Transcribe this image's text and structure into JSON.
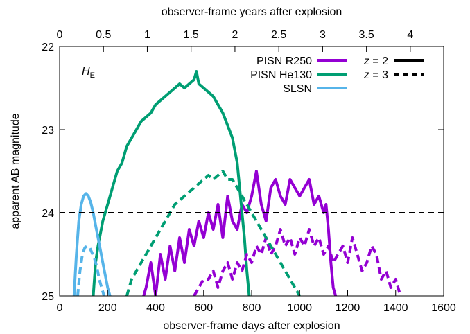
{
  "chart_data": {
    "type": "line",
    "x_axis": {
      "label": "observer-frame days after explosion",
      "range": [
        0,
        1600
      ],
      "ticks": [
        0,
        200,
        400,
        600,
        800,
        1000,
        1200,
        1400,
        1600
      ]
    },
    "x2_axis": {
      "label": "observer-frame years after explosion",
      "unit_days": 365.25,
      "ticks": [
        "0",
        "0.5",
        "1",
        "1.5",
        "2",
        "2.5",
        "3",
        "3.5",
        "4"
      ],
      "tick_values": [
        0,
        0.5,
        1,
        1.5,
        2,
        2.5,
        3,
        3.5,
        4
      ]
    },
    "y_axis": {
      "label": "apparent AB magnitude",
      "range": [
        22,
        25
      ],
      "inverted": true,
      "ticks": [
        22,
        23,
        24,
        25
      ]
    },
    "annotation": {
      "text": "H",
      "subscript": "E"
    },
    "grid": false,
    "reference_line": {
      "y": 24,
      "style": "dashed",
      "color": "#000000"
    },
    "legend_models": [
      {
        "label": "PISN R250",
        "color": "#9400d3"
      },
      {
        "label": "PISN He130",
        "color": "#009e73"
      },
      {
        "label": "SLSN",
        "color": "#56b4e9"
      }
    ],
    "legend_redshift": [
      {
        "label_var": "z",
        "label_rest": " = 2",
        "style": "solid"
      },
      {
        "label_var": "z",
        "label_rest": " = 3",
        "style": "dashed"
      }
    ],
    "series": [
      {
        "name": "PISN R250",
        "z": 2,
        "style": "solid",
        "color": "#9400d3",
        "x": [
          350,
          360,
          380,
          400,
          420,
          440,
          460,
          480,
          500,
          520,
          540,
          560,
          580,
          600,
          620,
          640,
          660,
          680,
          700,
          720,
          740,
          760,
          780,
          800,
          820,
          840,
          860,
          880,
          900,
          920,
          940,
          960,
          980,
          1000,
          1020,
          1040,
          1060,
          1080,
          1100,
          1110,
          1120,
          1130,
          1140,
          1150
        ],
        "y": [
          25.0,
          24.9,
          24.6,
          25.0,
          24.5,
          24.8,
          24.4,
          24.7,
          24.3,
          24.6,
          24.2,
          24.4,
          24.1,
          24.3,
          24.0,
          24.2,
          23.9,
          24.3,
          23.8,
          24.1,
          24.2,
          23.9,
          24.0,
          23.8,
          23.5,
          23.9,
          24.1,
          23.7,
          23.6,
          23.8,
          23.9,
          23.6,
          23.7,
          23.8,
          23.7,
          23.6,
          23.9,
          23.8,
          24.0,
          23.9,
          24.2,
          24.6,
          24.9,
          25.0
        ]
      },
      {
        "name": "PISN He130",
        "z": 2,
        "style": "solid",
        "color": "#009e73",
        "x": [
          140,
          150,
          160,
          180,
          200,
          220,
          240,
          260,
          280,
          300,
          320,
          340,
          360,
          380,
          400,
          420,
          440,
          460,
          480,
          500,
          520,
          540,
          560,
          570,
          580,
          600,
          620,
          640,
          660,
          680,
          700,
          720,
          740,
          750,
          760,
          770,
          780,
          790
        ],
        "y": [
          25.0,
          24.6,
          24.4,
          24.1,
          23.9,
          23.7,
          23.5,
          23.4,
          23.2,
          23.1,
          23.0,
          22.9,
          22.85,
          22.8,
          22.7,
          22.65,
          22.6,
          22.55,
          22.5,
          22.45,
          22.5,
          22.45,
          22.4,
          22.3,
          22.45,
          22.5,
          22.55,
          22.6,
          22.7,
          22.8,
          22.95,
          23.1,
          23.4,
          23.7,
          24.0,
          24.3,
          24.7,
          25.0
        ]
      },
      {
        "name": "SLSN",
        "z": 2,
        "style": "solid",
        "color": "#56b4e9",
        "x": [
          60,
          70,
          80,
          90,
          100,
          110,
          120,
          130,
          140,
          150,
          160,
          170,
          180,
          190,
          200,
          210
        ],
        "y": [
          25.0,
          24.5,
          24.1,
          23.9,
          23.8,
          23.77,
          23.8,
          23.88,
          24.0,
          24.15,
          24.3,
          24.45,
          24.6,
          24.75,
          24.9,
          25.0
        ]
      },
      {
        "name": "PISN R250",
        "z": 3,
        "style": "dashed",
        "color": "#9400d3",
        "x": [
          560,
          580,
          600,
          620,
          640,
          660,
          680,
          700,
          720,
          740,
          760,
          780,
          800,
          820,
          840,
          860,
          880,
          900,
          920,
          940,
          960,
          980,
          1000,
          1020,
          1040,
          1060,
          1080,
          1100,
          1120,
          1140,
          1160,
          1180,
          1200,
          1220,
          1240,
          1260,
          1280,
          1300,
          1320,
          1340,
          1360,
          1380,
          1400,
          1420
        ],
        "y": [
          25.0,
          24.9,
          24.8,
          24.8,
          24.7,
          24.9,
          24.7,
          24.6,
          24.8,
          24.6,
          24.7,
          24.5,
          24.6,
          24.4,
          24.5,
          24.3,
          24.5,
          24.4,
          24.2,
          24.4,
          24.3,
          24.5,
          24.3,
          24.4,
          24.2,
          24.4,
          24.3,
          24.5,
          24.4,
          24.6,
          24.5,
          24.4,
          24.6,
          24.3,
          24.5,
          24.7,
          24.6,
          24.4,
          24.5,
          24.8,
          24.7,
          24.9,
          24.8,
          25.0
        ]
      },
      {
        "name": "PISN He130",
        "z": 3,
        "style": "dashed",
        "color": "#009e73",
        "x": [
          280,
          300,
          320,
          340,
          360,
          380,
          400,
          420,
          440,
          460,
          480,
          500,
          520,
          540,
          560,
          580,
          600,
          620,
          640,
          660,
          680,
          700,
          720,
          740,
          760,
          780,
          800,
          820,
          840,
          860,
          880,
          900,
          920,
          940,
          960,
          980,
          1000
        ],
        "y": [
          25.0,
          24.8,
          24.7,
          24.6,
          24.5,
          24.4,
          24.3,
          24.2,
          24.1,
          24.0,
          23.9,
          23.85,
          23.8,
          23.75,
          23.7,
          23.65,
          23.6,
          23.55,
          23.6,
          23.55,
          23.5,
          23.6,
          23.6,
          23.7,
          23.8,
          23.9,
          24.0,
          24.1,
          24.2,
          24.3,
          24.4,
          24.5,
          24.6,
          24.7,
          24.8,
          24.9,
          25.0
        ]
      },
      {
        "name": "SLSN",
        "z": 3,
        "style": "dashed",
        "color": "#56b4e9",
        "x": [
          75,
          85,
          95,
          105,
          115,
          125,
          135,
          145,
          155,
          165,
          175,
          185
        ],
        "y": [
          25.0,
          24.7,
          24.5,
          24.42,
          24.4,
          24.42,
          24.48,
          24.55,
          24.65,
          24.8,
          24.9,
          25.0
        ]
      }
    ]
  }
}
